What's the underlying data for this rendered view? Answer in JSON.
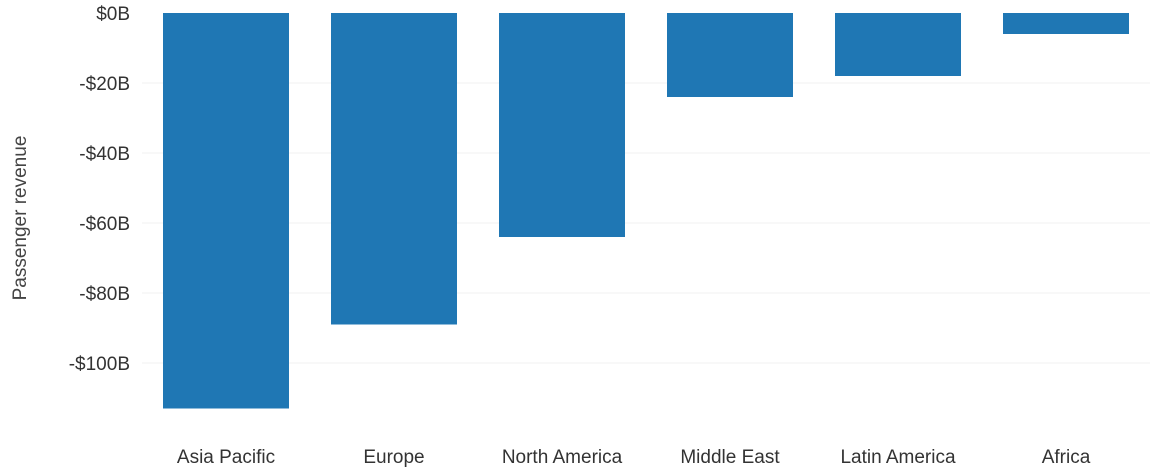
{
  "chart_data": {
    "type": "bar",
    "title": "",
    "xlabel": "",
    "ylabel": "Passenger revenue",
    "categories": [
      "Asia Pacific",
      "Europe",
      "North America",
      "Middle East",
      "Latin America",
      "Africa"
    ],
    "values": [
      -113,
      -89,
      -64,
      -24,
      -18,
      -6
    ],
    "unit": "billion USD",
    "ylim": [
      -115,
      0
    ],
    "yticks": [
      0,
      -20,
      -40,
      -60,
      -80,
      -100
    ],
    "ytick_labels": [
      "$0B",
      "-$20B",
      "-$40B",
      "-$60B",
      "-$80B",
      "-$100B"
    ],
    "grid": true,
    "legend": "none",
    "bar_color": "#1f77b4"
  }
}
